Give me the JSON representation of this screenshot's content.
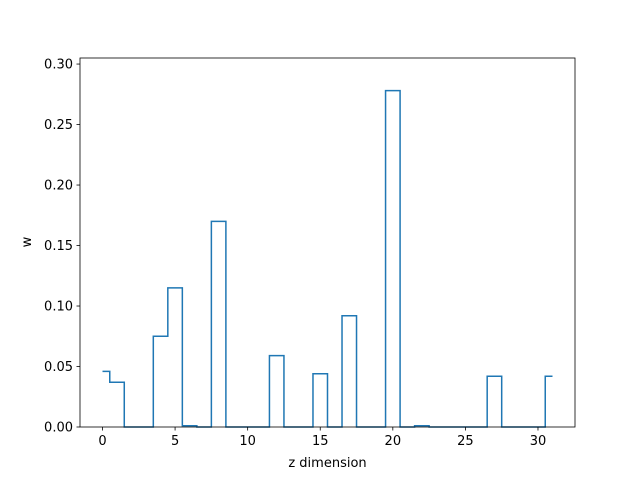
{
  "chart_data": {
    "type": "line",
    "drawstyle": "steps-mid",
    "title": "",
    "xlabel": "z dimension",
    "ylabel": "w",
    "xlim": [
      -1.55,
      32.55
    ],
    "ylim": [
      0,
      0.305
    ],
    "xticks": [
      0,
      5,
      10,
      15,
      20,
      25,
      30
    ],
    "xtick_labels": [
      "0",
      "5",
      "10",
      "15",
      "20",
      "25",
      "30"
    ],
    "yticks": [
      0,
      0.05,
      0.1,
      0.15,
      0.2,
      0.25,
      0.3
    ],
    "ytick_labels": [
      "0.00",
      "0.05",
      "0.10",
      "0.15",
      "0.20",
      "0.25",
      "0.30"
    ],
    "grid": false,
    "legend": "none",
    "series": [
      {
        "color": "#1f77b4",
        "x": [
          0,
          1,
          2,
          3,
          4,
          5,
          6,
          7,
          8,
          9,
          10,
          11,
          12,
          13,
          14,
          15,
          16,
          17,
          18,
          19,
          20,
          21,
          22,
          23,
          24,
          25,
          26,
          27,
          28,
          29,
          30,
          31
        ],
        "values": [
          0.046,
          0.037,
          0.0,
          0.0,
          0.075,
          0.115,
          0.001,
          0.0,
          0.17,
          0.0,
          0.0,
          0.0,
          0.059,
          0.0,
          0.0,
          0.044,
          0.0,
          0.092,
          0.0,
          0.0,
          0.278,
          0.0,
          0.001,
          0.0,
          0.0,
          0.0,
          0.0,
          0.042,
          0.0,
          0.0,
          0.0,
          0.042
        ]
      }
    ]
  }
}
